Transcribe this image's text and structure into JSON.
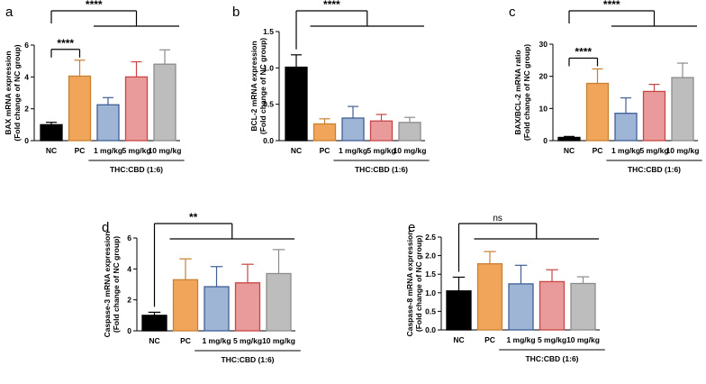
{
  "chart_data": [
    {
      "panel": "a",
      "type": "bar",
      "categories": [
        "NC",
        "PC",
        "1 mg/kg",
        "5 mg/kg",
        "10 mg/kg"
      ],
      "values": [
        1.0,
        4.05,
        2.25,
        4.0,
        4.8
      ],
      "errors": [
        0.15,
        1.0,
        0.45,
        0.95,
        0.9
      ],
      "colors": [
        "#000000",
        "#f0a55a",
        "#9fb5d6",
        "#e99a9a",
        "#bdbdbd"
      ],
      "edge_colors": [
        "#000000",
        "#c98030",
        "#3f5f96",
        "#c94545",
        "#8c8c8c"
      ],
      "ylabel": [
        "BAX mRNA expression",
        "(Fold change of NC group)"
      ],
      "ylim": [
        0,
        6
      ],
      "yticks": [
        "0",
        "2",
        "4",
        "6"
      ],
      "group_label": "THC:CBD (1:6)",
      "significance": [
        {
          "label": "****",
          "from": 0,
          "to": 1,
          "kind": "pair"
        },
        {
          "label": "****",
          "from": 0,
          "to": [
            2,
            4
          ],
          "kind": "group"
        }
      ]
    },
    {
      "panel": "b",
      "type": "bar",
      "categories": [
        "NC",
        "PC",
        "1 mg/kg",
        "5 mg/kg",
        "10 mg/kg"
      ],
      "values": [
        1.01,
        0.23,
        0.31,
        0.27,
        0.25
      ],
      "errors": [
        0.17,
        0.07,
        0.16,
        0.09,
        0.07
      ],
      "colors": [
        "#000000",
        "#f0a55a",
        "#9fb5d6",
        "#e99a9a",
        "#bdbdbd"
      ],
      "edge_colors": [
        "#000000",
        "#c98030",
        "#3f5f96",
        "#c94545",
        "#8c8c8c"
      ],
      "ylabel": [
        "BCL-2 mRNA expression",
        "(Fold change of NC group)"
      ],
      "ylim": [
        0,
        1.5
      ],
      "yticks": [
        "0.0",
        "0.5",
        "1.0",
        "1.5"
      ],
      "group_label": "THC:CBD (1:6)",
      "significance": [
        {
          "label": "****",
          "from": 0,
          "to": [
            1,
            4
          ],
          "kind": "group"
        }
      ]
    },
    {
      "panel": "c",
      "type": "bar",
      "categories": [
        "NC",
        "PC",
        "1 mg/kg",
        "5 mg/kg",
        "10 mg/kg"
      ],
      "values": [
        1.0,
        17.8,
        8.5,
        15.3,
        19.6
      ],
      "errors": [
        0.3,
        4.5,
        4.8,
        2.2,
        4.5
      ],
      "colors": [
        "#000000",
        "#f0a55a",
        "#9fb5d6",
        "#e99a9a",
        "#bdbdbd"
      ],
      "edge_colors": [
        "#000000",
        "#c98030",
        "#3f5f96",
        "#c94545",
        "#8c8c8c"
      ],
      "ylabel": [
        "BAX/BCL-2 mRNA ratio",
        "(Fold change of NC group)"
      ],
      "ylim": [
        0,
        30
      ],
      "yticks": [
        "0",
        "10",
        "20",
        "30"
      ],
      "group_label": "THC:CBD (1:6)",
      "significance": [
        {
          "label": "****",
          "from": 0,
          "to": 1,
          "kind": "pair"
        },
        {
          "label": "****",
          "from": 0,
          "to": [
            2,
            4
          ],
          "kind": "group"
        }
      ]
    },
    {
      "panel": "d",
      "type": "bar",
      "categories": [
        "NC",
        "PC",
        "1 mg/kg",
        "5 mg/kg",
        "10 mg/kg"
      ],
      "values": [
        1.0,
        3.3,
        2.85,
        3.1,
        3.7
      ],
      "errors": [
        0.2,
        1.35,
        1.3,
        1.2,
        1.55
      ],
      "colors": [
        "#000000",
        "#f0a55a",
        "#9fb5d6",
        "#e99a9a",
        "#bdbdbd"
      ],
      "edge_colors": [
        "#000000",
        "#c98030",
        "#3f5f96",
        "#c94545",
        "#8c8c8c"
      ],
      "ylabel": [
        "Caspase-3 mRNA expression",
        "(Fold change of NC group)"
      ],
      "ylim": [
        0,
        6
      ],
      "yticks": [
        "0",
        "2",
        "4",
        "6"
      ],
      "group_label": "THC:CBD (1:6)",
      "significance": [
        {
          "label": "**",
          "from": 0,
          "to": [
            1,
            4
          ],
          "kind": "group"
        }
      ]
    },
    {
      "panel": "e",
      "type": "bar",
      "categories": [
        "NC",
        "PC",
        "1 mg/kg",
        "5 mg/kg",
        "10 mg/kg"
      ],
      "values": [
        1.05,
        1.78,
        1.24,
        1.3,
        1.25
      ],
      "errors": [
        0.37,
        0.33,
        0.5,
        0.32,
        0.18
      ],
      "colors": [
        "#000000",
        "#f0a55a",
        "#9fb5d6",
        "#e99a9a",
        "#bdbdbd"
      ],
      "edge_colors": [
        "#000000",
        "#c98030",
        "#3f5f96",
        "#c94545",
        "#8c8c8c"
      ],
      "ylabel": [
        "Caspase-8 mRNA expression",
        "(Fold change of NC group)"
      ],
      "ylim": [
        0,
        2.5
      ],
      "yticks": [
        "0.0",
        "0.5",
        "1.0",
        "1.5",
        "2.0",
        "2.5"
      ],
      "group_label": "THC:CBD (1:6)",
      "significance": [
        {
          "label": "ns",
          "from": 0,
          "to": [
            1,
            4
          ],
          "kind": "group"
        }
      ]
    }
  ]
}
